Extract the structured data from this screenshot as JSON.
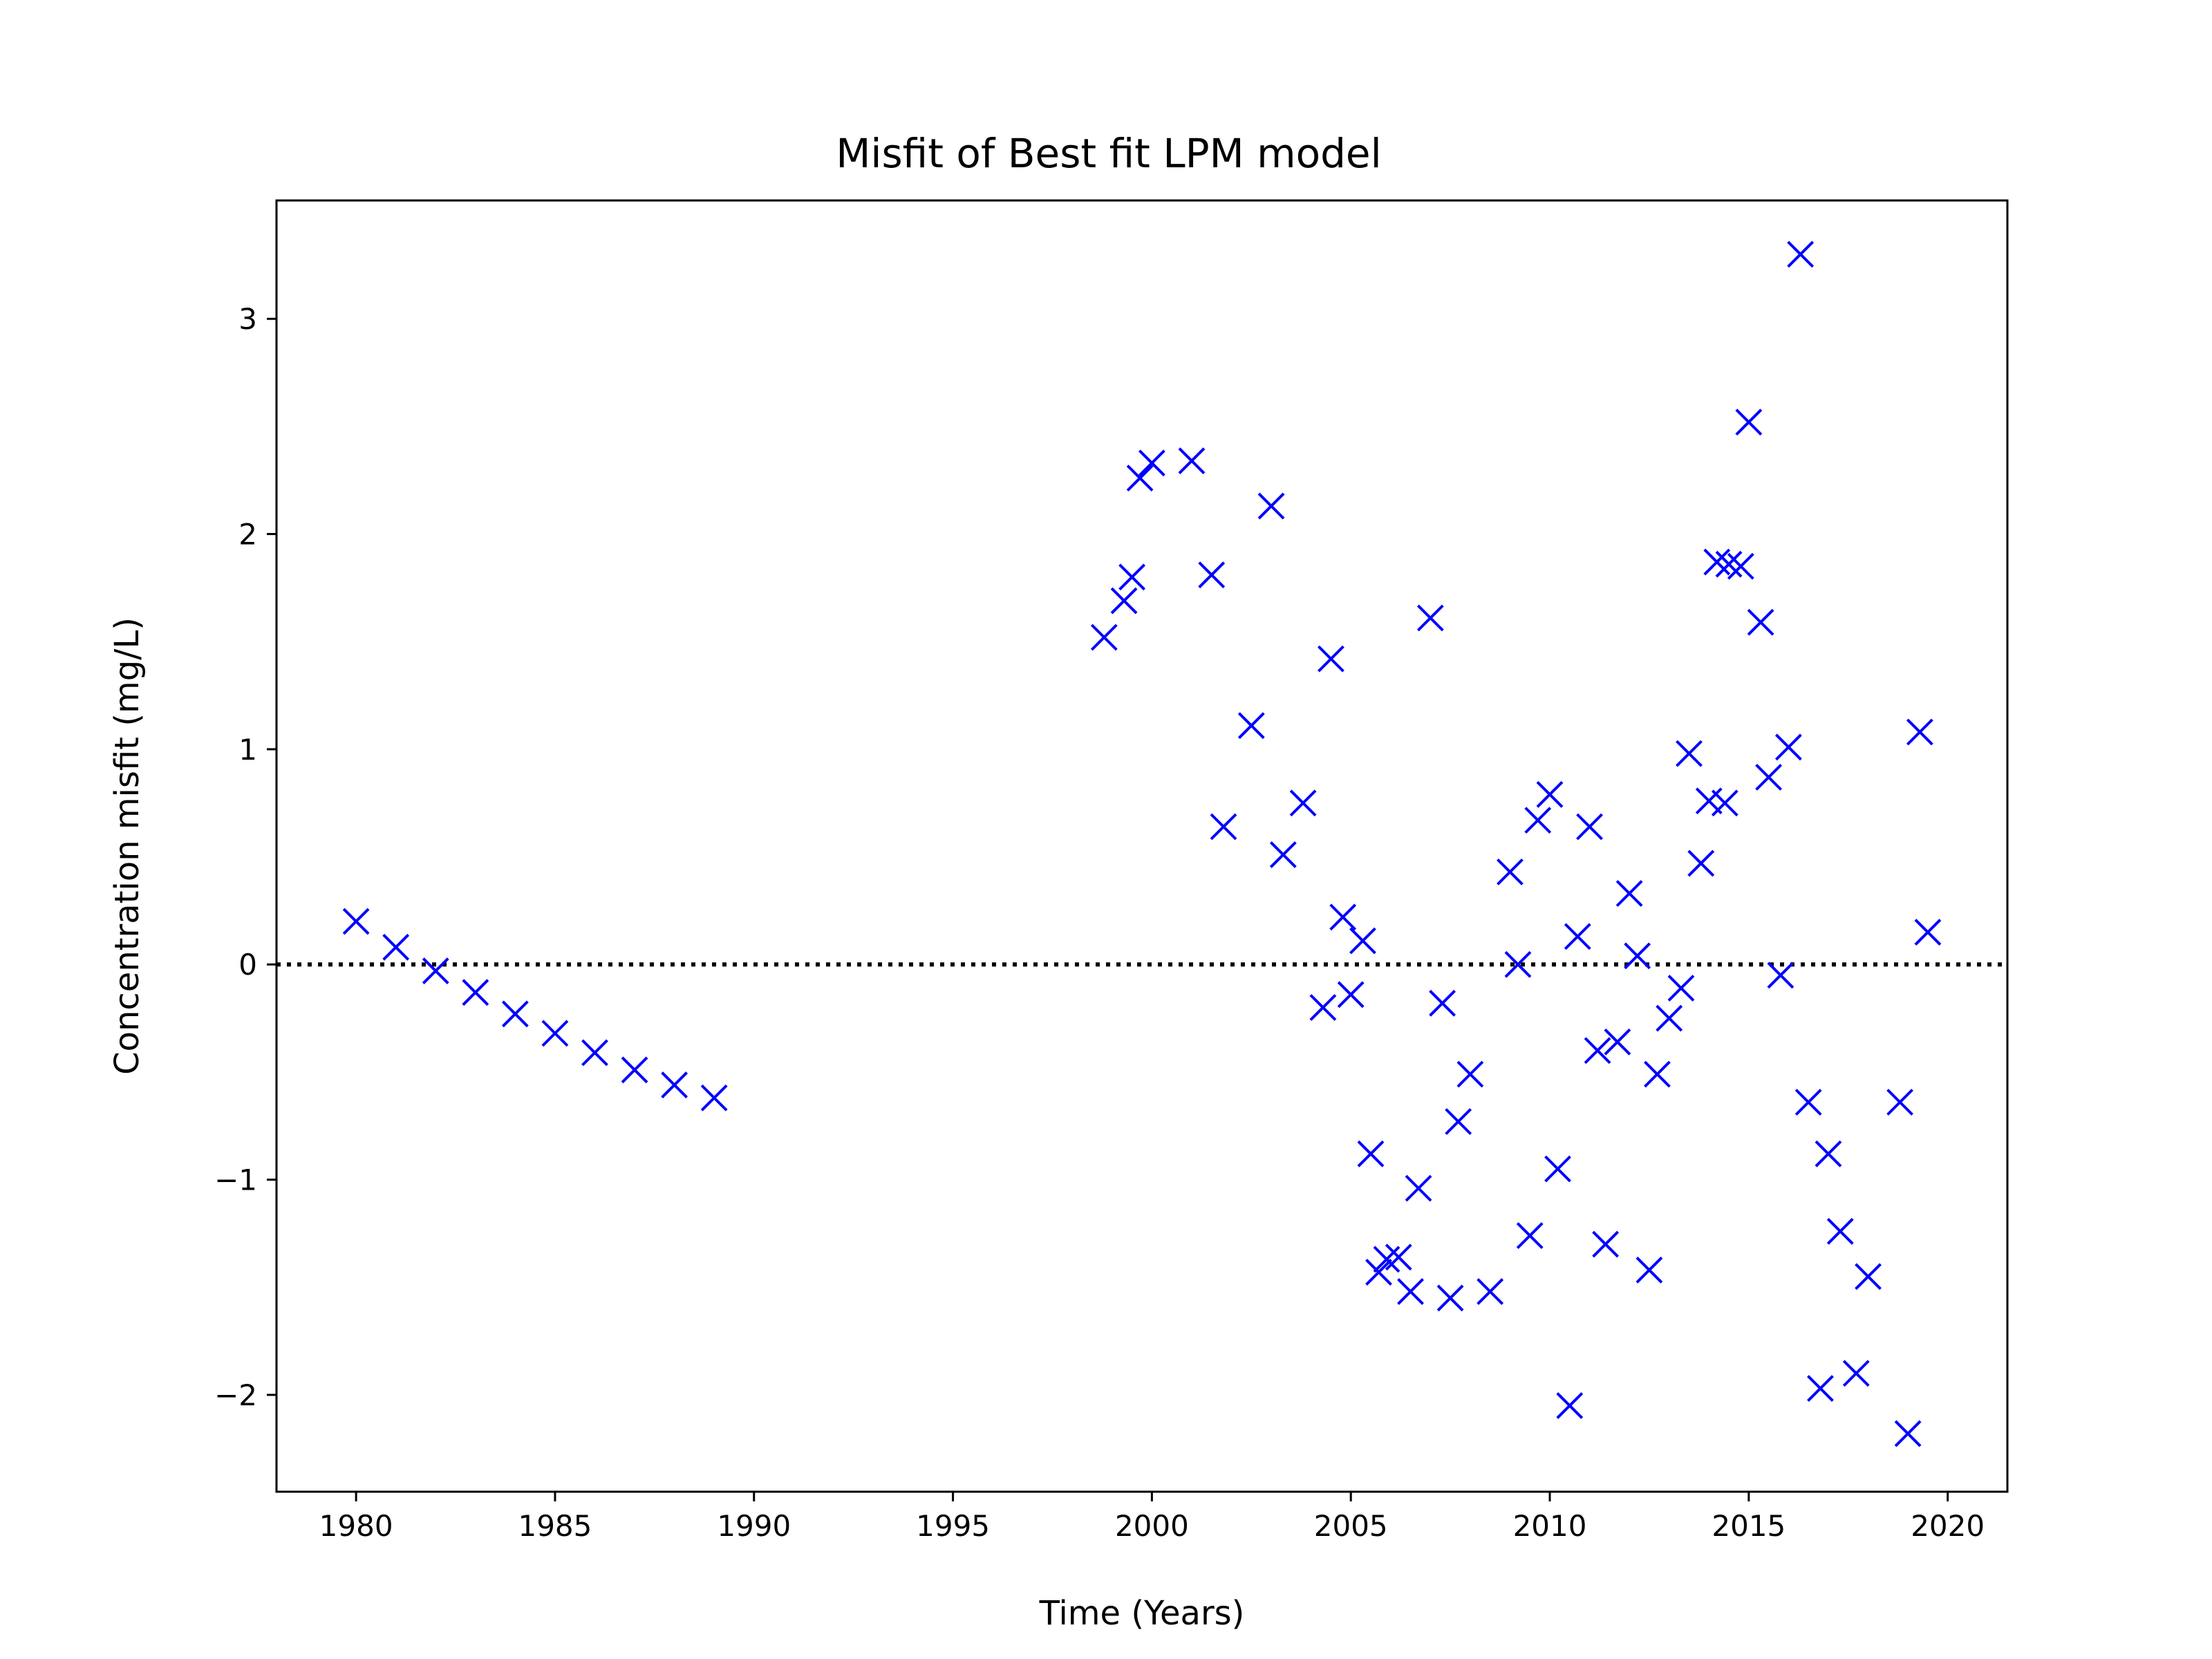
{
  "chart_data": {
    "type": "scatter",
    "title": "Misfit of Best fit LPM model",
    "xlabel": "Time (Years)",
    "ylabel": "Concentration misfit (mg/L)",
    "xlim": [
      1978,
      2021.5
    ],
    "ylim": [
      -2.45,
      3.55
    ],
    "xticks": [
      1980,
      1985,
      1990,
      1995,
      2000,
      2005,
      2010,
      2015,
      2020
    ],
    "yticks": [
      -2,
      -1,
      0,
      1,
      2,
      3
    ],
    "xtick_labels": [
      "1980",
      "1985",
      "1990",
      "1995",
      "2000",
      "2005",
      "2010",
      "2015",
      "2020"
    ],
    "ytick_labels": [
      "−2",
      "−1",
      "0",
      "1",
      "2",
      "3"
    ],
    "reference_line": {
      "y": 0,
      "style": "dotted",
      "color": "#000000"
    },
    "marker": "x",
    "color": "#0000ff",
    "grid": false,
    "series": [
      {
        "points": [
          [
            1980.0,
            0.2
          ],
          [
            1981.0,
            0.08
          ],
          [
            1982.0,
            -0.03
          ],
          [
            1983.0,
            -0.13
          ],
          [
            1984.0,
            -0.23
          ],
          [
            1985.0,
            -0.32
          ],
          [
            1986.0,
            -0.41
          ],
          [
            1987.0,
            -0.49
          ],
          [
            1988.0,
            -0.56
          ],
          [
            1989.0,
            -0.62
          ],
          [
            1998.8,
            1.52
          ],
          [
            1999.3,
            1.69
          ],
          [
            1999.5,
            1.8
          ],
          [
            1999.7,
            2.26
          ],
          [
            2000.0,
            2.33
          ],
          [
            2001.0,
            2.34
          ],
          [
            2001.5,
            1.81
          ],
          [
            2001.8,
            0.64
          ],
          [
            2002.5,
            1.11
          ],
          [
            2003.0,
            2.13
          ],
          [
            2003.3,
            0.51
          ],
          [
            2003.8,
            0.75
          ],
          [
            2004.3,
            -0.2
          ],
          [
            2004.5,
            1.42
          ],
          [
            2004.8,
            0.22
          ],
          [
            2005.0,
            -0.14
          ],
          [
            2005.3,
            0.11
          ],
          [
            2005.5,
            -0.88
          ],
          [
            2005.7,
            -1.43
          ],
          [
            2005.9,
            -1.37
          ],
          [
            2006.2,
            -1.36
          ],
          [
            2006.5,
            -1.52
          ],
          [
            2006.7,
            -1.04
          ],
          [
            2007.0,
            1.61
          ],
          [
            2007.3,
            -0.18
          ],
          [
            2007.5,
            -1.55
          ],
          [
            2007.7,
            -0.73
          ],
          [
            2008.0,
            -0.51
          ],
          [
            2008.5,
            -1.52
          ],
          [
            2009.0,
            0.43
          ],
          [
            2009.2,
            0.0
          ],
          [
            2009.5,
            -1.26
          ],
          [
            2009.7,
            0.67
          ],
          [
            2010.0,
            0.79
          ],
          [
            2010.2,
            -0.95
          ],
          [
            2010.5,
            -2.05
          ],
          [
            2010.7,
            0.13
          ],
          [
            2011.0,
            0.64
          ],
          [
            2011.2,
            -0.4
          ],
          [
            2011.4,
            -1.3
          ],
          [
            2011.7,
            -0.36
          ],
          [
            2012.0,
            0.33
          ],
          [
            2012.2,
            0.04
          ],
          [
            2012.5,
            -1.42
          ],
          [
            2012.7,
            -0.51
          ],
          [
            2013.0,
            -0.25
          ],
          [
            2013.3,
            -0.11
          ],
          [
            2013.5,
            0.98
          ],
          [
            2013.8,
            0.47
          ],
          [
            2014.0,
            0.76
          ],
          [
            2014.2,
            1.87
          ],
          [
            2014.4,
            0.75
          ],
          [
            2014.5,
            1.86
          ],
          [
            2014.8,
            1.85
          ],
          [
            2015.0,
            2.52
          ],
          [
            2015.3,
            1.59
          ],
          [
            2015.5,
            0.87
          ],
          [
            2015.8,
            -0.05
          ],
          [
            2016.0,
            1.01
          ],
          [
            2016.3,
            3.3
          ],
          [
            2016.5,
            -0.64
          ],
          [
            2016.8,
            -1.97
          ],
          [
            2017.0,
            -0.88
          ],
          [
            2017.3,
            -1.24
          ],
          [
            2017.7,
            -1.9
          ],
          [
            2018.0,
            -1.45
          ],
          [
            2018.8,
            -0.64
          ],
          [
            2019.0,
            -2.18
          ],
          [
            2019.3,
            1.08
          ],
          [
            2019.5,
            0.15
          ]
        ]
      }
    ]
  }
}
